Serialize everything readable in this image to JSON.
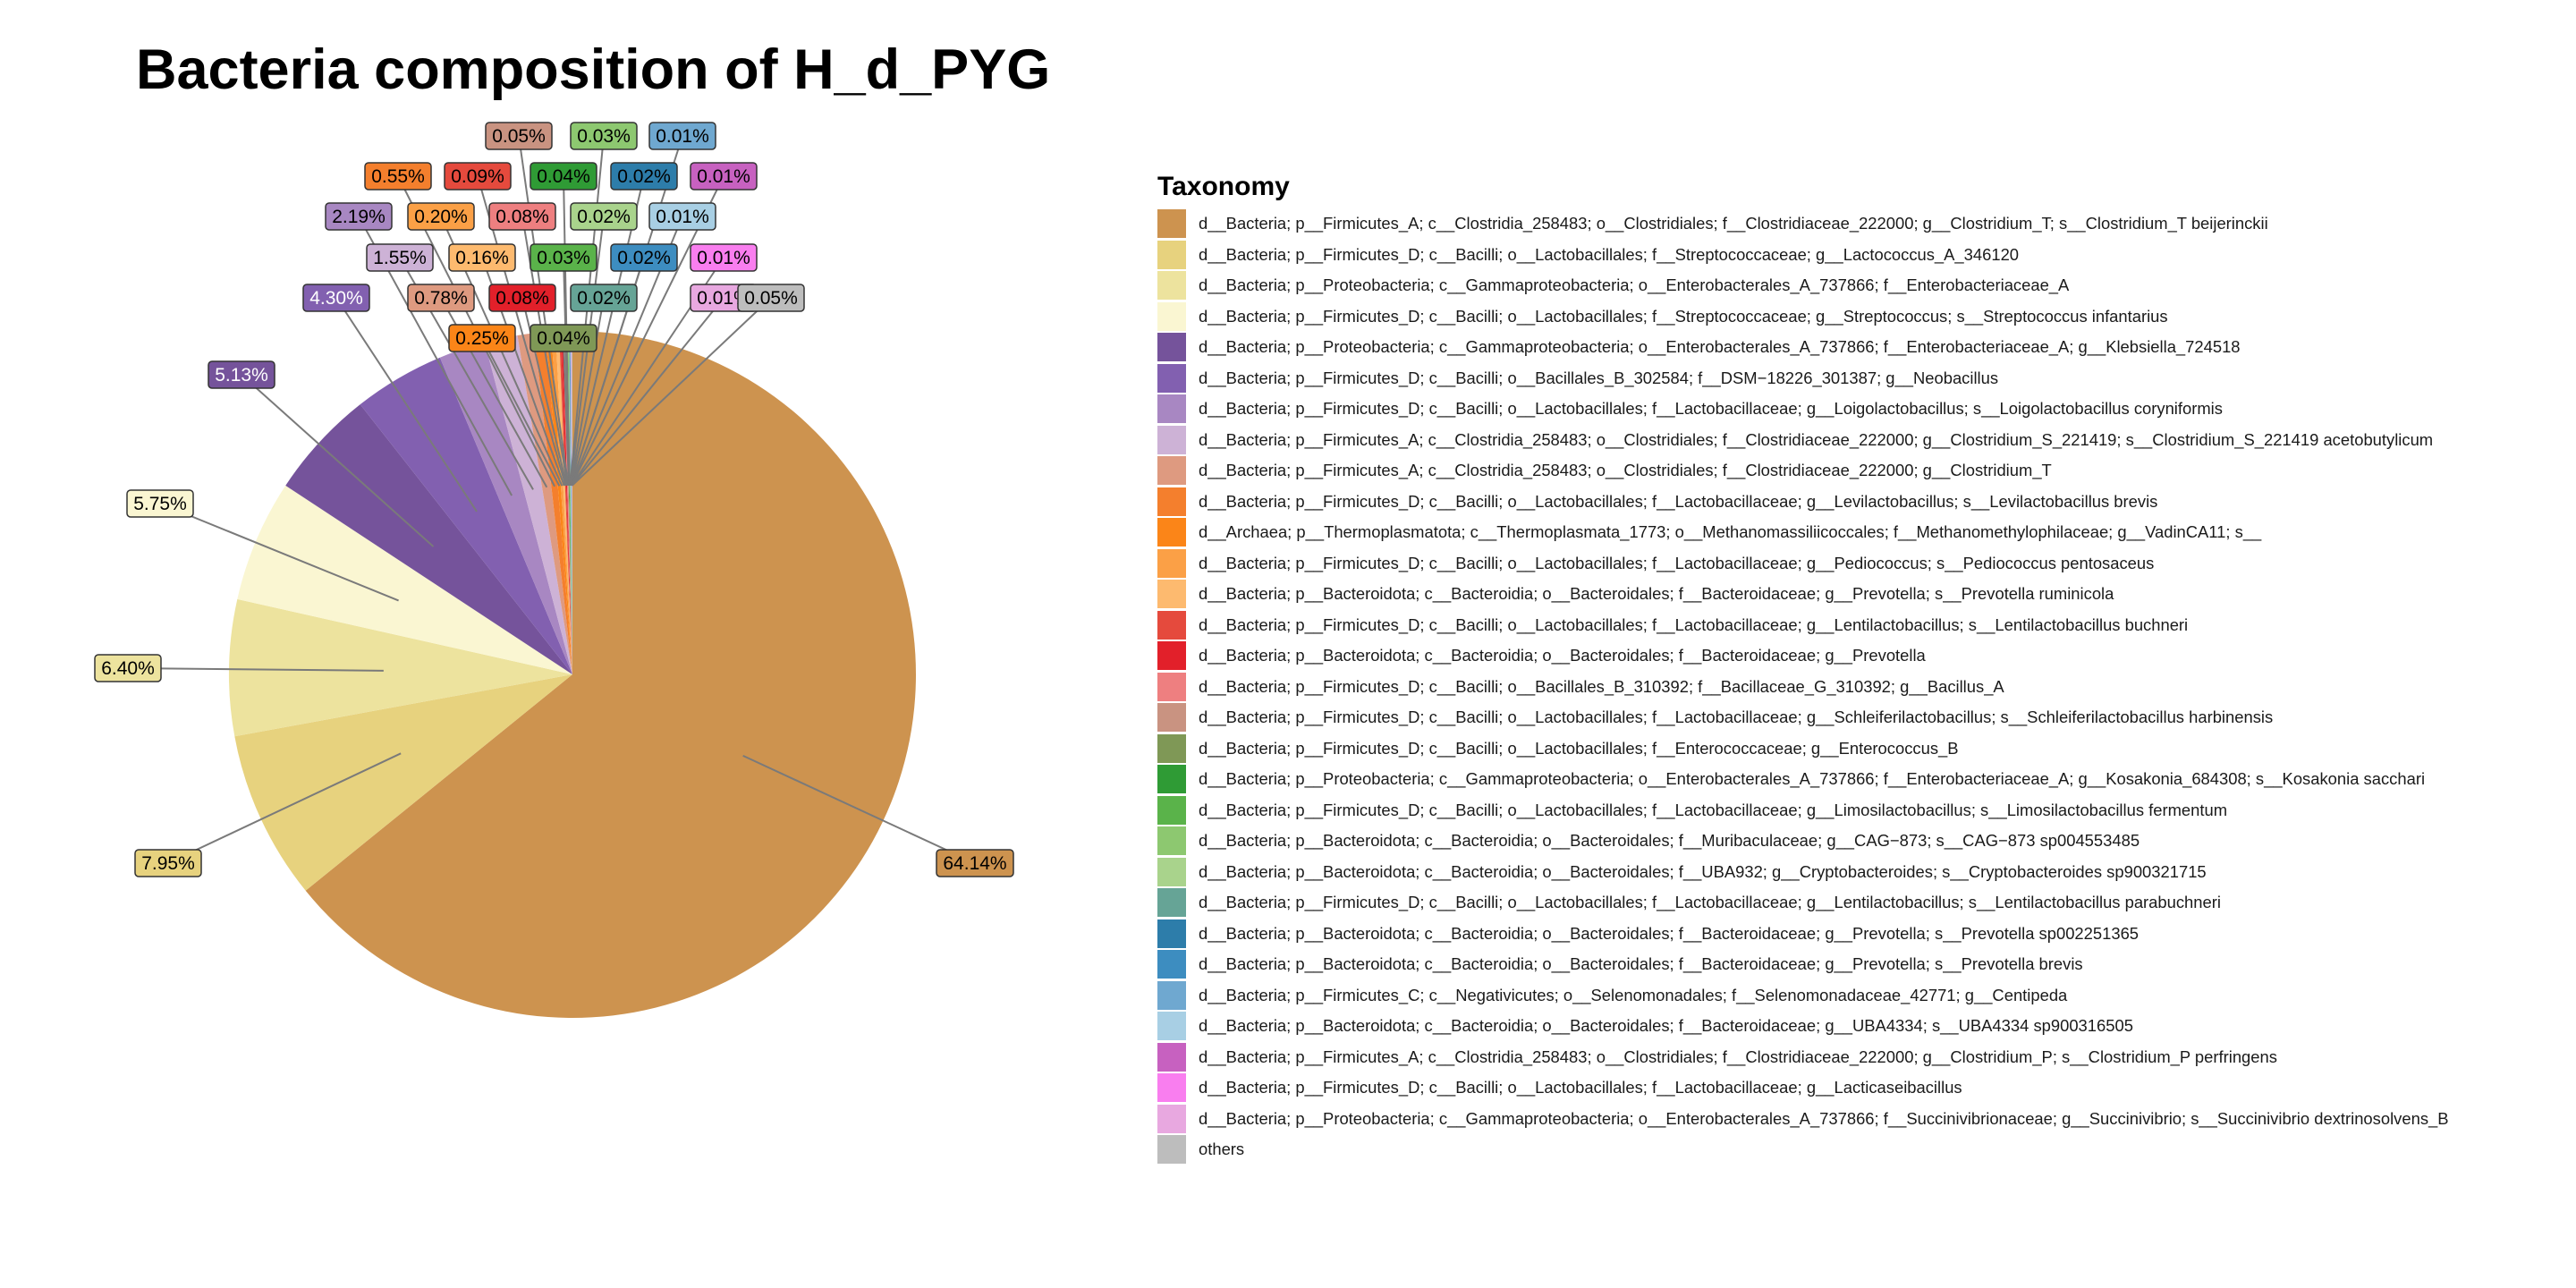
{
  "chart_data": {
    "type": "pie",
    "title": "Bacteria composition of H_d_PYG",
    "legend_title": "Taxonomy",
    "legend_position": "right",
    "slices": [
      {
        "label": "d__Bacteria; p__Firmicutes_A; c__Clostridia_258483; o__Clostridiales; f__Clostridiaceae_222000; g__Clostridium_T; s__Clostridium_T beijerinckii",
        "value": 64.14,
        "pct_label": "64.14%",
        "color": "#CD934F"
      },
      {
        "label": "d__Bacteria; p__Firmicutes_D; c__Bacilli; o__Lactobacillales; f__Streptococcaceae; g__Lactococcus_A_346120",
        "value": 7.95,
        "pct_label": "7.95%",
        "color": "#E7D27E"
      },
      {
        "label": "d__Bacteria; p__Proteobacteria; c__Gammaproteobacteria; o__Enterobacterales_A_737866; f__Enterobacteriaceae_A",
        "value": 6.4,
        "pct_label": "6.40%",
        "color": "#EDE39E"
      },
      {
        "label": "d__Bacteria; p__Firmicutes_D; c__Bacilli; o__Lactobacillales; f__Streptococcaceae; g__Streptococcus; s__Streptococcus infantarius",
        "value": 5.75,
        "pct_label": "5.75%",
        "color": "#FAF6D2"
      },
      {
        "label": "d__Bacteria; p__Proteobacteria; c__Gammaproteobacteria; o__Enterobacterales_A_737866; f__Enterobacteriaceae_A; g__Klebsiella_724518",
        "value": 5.13,
        "pct_label": "5.13%",
        "color": "#75539B"
      },
      {
        "label": "d__Bacteria; p__Firmicutes_D; c__Bacilli; o__Bacillales_B_302584; f__DSM−18226_301387; g__Neobacillus",
        "value": 4.3,
        "pct_label": "4.30%",
        "color": "#8260B0"
      },
      {
        "label": "d__Bacteria; p__Firmicutes_D; c__Bacilli; o__Lactobacillales; f__Lactobacillaceae; g__Loigolactobacillus; s__Loigolactobacillus coryniformis",
        "value": 2.19,
        "pct_label": "2.19%",
        "color": "#A887C2"
      },
      {
        "label": "d__Bacteria; p__Firmicutes_A; c__Clostridia_258483; o__Clostridiales; f__Clostridiaceae_222000; g__Clostridium_S_221419; s__Clostridium_S_221419 acetobutylicum",
        "value": 1.55,
        "pct_label": "1.55%",
        "color": "#CDB2D6"
      },
      {
        "label": "d__Bacteria; p__Firmicutes_A; c__Clostridia_258483; o__Clostridiales; f__Clostridiaceae_222000; g__Clostridium_T",
        "value": 0.78,
        "pct_label": "0.78%",
        "color": "#DE9A80"
      },
      {
        "label": "d__Bacteria; p__Firmicutes_D; c__Bacilli; o__Lactobacillales; f__Lactobacillaceae; g__Levilactobacillus; s__Levilactobacillus brevis",
        "value": 0.55,
        "pct_label": "0.55%",
        "color": "#F47F2D"
      },
      {
        "label": "d__Archaea; p__Thermoplasmatota; c__Thermoplasmata_1773; o__Methanomassiliicoccales; f__Methanomethylophilaceae; g__VadinCA11; s__",
        "value": 0.25,
        "pct_label": "0.25%",
        "color": "#FB8518"
      },
      {
        "label": "d__Bacteria; p__Firmicutes_D; c__Bacilli; o__Lactobacillales; f__Lactobacillaceae; g__Pediococcus; s__Pediococcus pentosaceus",
        "value": 0.2,
        "pct_label": "0.20%",
        "color": "#FBA046"
      },
      {
        "label": "d__Bacteria; p__Bacteroidota; c__Bacteroidia; o__Bacteroidales; f__Bacteroidaceae; g__Prevotella; s__Prevotella ruminicola",
        "value": 0.16,
        "pct_label": "0.16%",
        "color": "#FDBA6F"
      },
      {
        "label": "d__Bacteria; p__Firmicutes_D; c__Bacilli; o__Lactobacillales; f__Lactobacillaceae; g__Lentilactobacillus; s__Lentilactobacillus buchneri",
        "value": 0.09,
        "pct_label": "0.09%",
        "color": "#E54A3D"
      },
      {
        "label": "d__Bacteria; p__Bacteroidota; c__Bacteroidia; o__Bacteroidales; f__Bacteroidaceae; g__Prevotella",
        "value": 0.08,
        "pct_label": "0.08%",
        "color": "#E2202A"
      },
      {
        "label": "d__Bacteria; p__Firmicutes_D; c__Bacilli; o__Bacillales_B_310392; f__Bacillaceae_G_310392; g__Bacillus_A",
        "value": 0.08,
        "pct_label": "0.08%",
        "color": "#EE7F80"
      },
      {
        "label": "d__Bacteria; p__Firmicutes_D; c__Bacilli; o__Lactobacillales; f__Lactobacillaceae; g__Schleiferilactobacillus; s__Schleiferilactobacillus harbinensis",
        "value": 0.05,
        "pct_label": "0.05%",
        "color": "#C99381"
      },
      {
        "label": "d__Bacteria; p__Firmicutes_D; c__Bacilli; o__Lactobacillales; f__Enterococcaceae; g__Enterococcus_B",
        "value": 0.04,
        "pct_label": "0.04%",
        "color": "#7F9856"
      },
      {
        "label": "d__Bacteria; p__Proteobacteria; c__Gammaproteobacteria; o__Enterobacterales_A_737866; f__Enterobacteriaceae_A; g__Kosakonia_684308; s__Kosakonia sacchari",
        "value": 0.04,
        "pct_label": "0.04%",
        "color": "#2F9B35"
      },
      {
        "label": "d__Bacteria; p__Firmicutes_D; c__Bacilli; o__Lactobacillales; f__Lactobacillaceae; g__Limosilactobacillus; s__Limosilactobacillus fermentum",
        "value": 0.03,
        "pct_label": "0.03%",
        "color": "#5AB34A"
      },
      {
        "label": "d__Bacteria; p__Bacteroidota; c__Bacteroidia; o__Bacteroidales; f__Muribaculaceae; g__CAG−873; s__CAG−873 sp004553485",
        "value": 0.03,
        "pct_label": "0.03%",
        "color": "#8DC870"
      },
      {
        "label": "d__Bacteria; p__Bacteroidota; c__Bacteroidia; o__Bacteroidales; f__UBA932; g__Cryptobacteroides; s__Cryptobacteroides sp900321715",
        "value": 0.02,
        "pct_label": "0.02%",
        "color": "#A9D38C"
      },
      {
        "label": "d__Bacteria; p__Firmicutes_D; c__Bacilli; o__Lactobacillales; f__Lactobacillaceae; g__Lentilactobacillus; s__Lentilactobacillus parabuchneri",
        "value": 0.02,
        "pct_label": "0.02%",
        "color": "#66A496"
      },
      {
        "label": "d__Bacteria; p__Bacteroidota; c__Bacteroidia; o__Bacteroidales; f__Bacteroidaceae; g__Prevotella; s__Prevotella sp002251365",
        "value": 0.02,
        "pct_label": "0.02%",
        "color": "#2D7DAA"
      },
      {
        "label": "d__Bacteria; p__Bacteroidota; c__Bacteroidia; o__Bacteroidales; f__Bacteroidaceae; g__Prevotella; s__Prevotella brevis",
        "value": 0.02,
        "pct_label": "0.02%",
        "color": "#3D8DC0"
      },
      {
        "label": "d__Bacteria; p__Firmicutes_C; c__Negativicutes; o__Selenomonadales; f__Selenomonadaceae_42771; g__Centipeda",
        "value": 0.01,
        "pct_label": "0.01%",
        "color": "#6FA8D0"
      },
      {
        "label": "d__Bacteria; p__Bacteroidota; c__Bacteroidia; o__Bacteroidales; f__Bacteroidaceae; g__UBA4334; s__UBA4334 sp900316505",
        "value": 0.01,
        "pct_label": "0.01%",
        "color": "#A8CFE4"
      },
      {
        "label": "d__Bacteria; p__Firmicutes_A; c__Clostridia_258483; o__Clostridiales; f__Clostridiaceae_222000; g__Clostridium_P; s__Clostridium_P perfringens",
        "value": 0.01,
        "pct_label": "0.01%",
        "color": "#C761C0"
      },
      {
        "label": "d__Bacteria; p__Firmicutes_D; c__Bacilli; o__Lactobacillales; f__Lactobacillaceae; g__Lacticaseibacillus",
        "value": 0.01,
        "pct_label": "0.01%",
        "color": "#F97EEF"
      },
      {
        "label": "d__Bacteria; p__Proteobacteria; c__Gammaproteobacteria; o__Enterobacterales_A_737866; f__Succinivibrionaceae; g__Succinivibrio; s__Succinivibrio dextrinosolvens_B",
        "value": 0.01,
        "pct_label": "0.01%",
        "color": "#E8A8E0"
      },
      {
        "label": "others",
        "value": 0.05,
        "pct_label": "0.05%",
        "color": "#BDBDBD"
      }
    ]
  }
}
